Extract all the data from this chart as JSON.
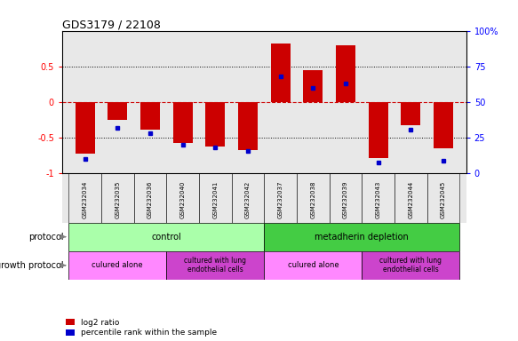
{
  "title": "GDS3179 / 22108",
  "samples": [
    "GSM232034",
    "GSM232035",
    "GSM232036",
    "GSM232040",
    "GSM232041",
    "GSM232042",
    "GSM232037",
    "GSM232038",
    "GSM232039",
    "GSM232043",
    "GSM232044",
    "GSM232045"
  ],
  "log2_ratio": [
    -0.72,
    -0.25,
    -0.38,
    -0.57,
    -0.62,
    -0.67,
    0.82,
    0.45,
    0.79,
    -0.78,
    -0.32,
    -0.65
  ],
  "percentile": [
    10,
    32,
    28,
    20,
    18,
    16,
    68,
    60,
    63,
    8,
    31,
    9
  ],
  "bar_color": "#cc0000",
  "dot_color": "#0000cc",
  "ylim_left": [
    -1,
    1
  ],
  "ylim_right": [
    0,
    100
  ],
  "yticks_left": [
    -1,
    -0.5,
    0,
    0.5
  ],
  "yticks_right": [
    0,
    25,
    50,
    75,
    100
  ],
  "ytick_labels_left": [
    "-1",
    "-0.5",
    "0",
    "0.5"
  ],
  "protocol_color_control": "#aaffaa",
  "protocol_color_meta": "#44cc44",
  "growth_color_alone": "#ff88ff",
  "growth_color_lung": "#cc44cc",
  "legend_red_label": "log2 ratio",
  "legend_blue_label": "percentile rank within the sample",
  "bg_color": "#e8e8e8",
  "bar_width": 0.6,
  "n_samples": 12
}
